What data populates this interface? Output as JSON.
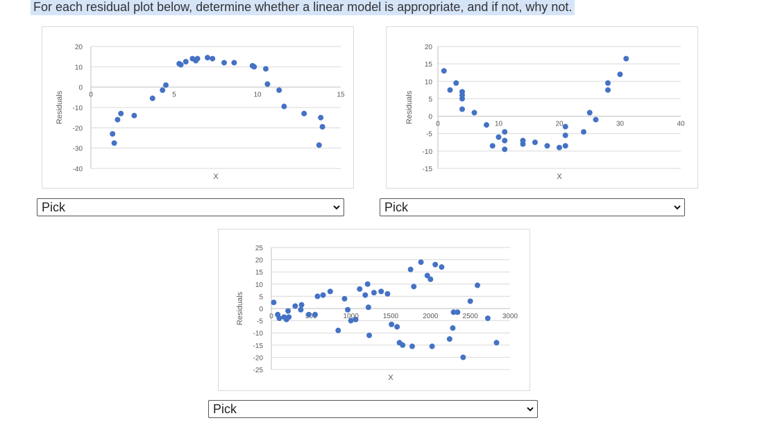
{
  "prompt": "For each residual plot below, determine whether a linear model is appropriate, and if not, why not.",
  "dropdowns": [
    {
      "selected": "Pick"
    },
    {
      "selected": "Pick"
    },
    {
      "selected": "Pick"
    }
  ],
  "colors": {
    "marker": "#4472c4",
    "grid": "#d9d9d9",
    "axis": "#bfbfbf",
    "highlight": "#d6e4f8"
  },
  "icons": {
    "dropdown": "chevron-down-icon"
  },
  "chart_data": [
    {
      "type": "scatter",
      "title": "",
      "xlabel": "X",
      "ylabel": "Residuals",
      "xlim": [
        0,
        15
      ],
      "ylim": [
        -40,
        20
      ],
      "xticks": [
        0,
        5,
        10,
        15
      ],
      "yticks": [
        -40,
        -30,
        -20,
        -10,
        0,
        10,
        20
      ],
      "grid": true,
      "legend": "none",
      "points": [
        [
          1.3,
          -23
        ],
        [
          1.4,
          -27.5
        ],
        [
          1.6,
          -16
        ],
        [
          1.8,
          -13
        ],
        [
          2.6,
          -14
        ],
        [
          3.7,
          -5.5
        ],
        [
          4.3,
          -1.5
        ],
        [
          4.5,
          1
        ],
        [
          5.3,
          11.5
        ],
        [
          5.4,
          11
        ],
        [
          5.7,
          12.5
        ],
        [
          6.1,
          14
        ],
        [
          6.3,
          13
        ],
        [
          6.4,
          14
        ],
        [
          7.0,
          14.5
        ],
        [
          7.3,
          14
        ],
        [
          8.0,
          12
        ],
        [
          8.6,
          12
        ],
        [
          9.7,
          10.5
        ],
        [
          9.8,
          10
        ],
        [
          10.5,
          9
        ],
        [
          10.6,
          1.5
        ],
        [
          11.3,
          -1.5
        ],
        [
          11.6,
          -9.5
        ],
        [
          12.8,
          -13
        ],
        [
          13.8,
          -15
        ],
        [
          13.9,
          -19.5
        ],
        [
          13.7,
          -28.5
        ]
      ]
    },
    {
      "type": "scatter",
      "title": "",
      "xlabel": "X",
      "ylabel": "Residuals",
      "xlim": [
        0,
        40
      ],
      "ylim": [
        -15,
        20
      ],
      "xticks": [
        0,
        10,
        20,
        30,
        40
      ],
      "yticks": [
        -15,
        -10,
        -5,
        0,
        5,
        10,
        15,
        20
      ],
      "grid": true,
      "legend": "none",
      "points": [
        [
          1,
          13
        ],
        [
          2,
          7.5
        ],
        [
          3,
          9.5
        ],
        [
          4,
          7
        ],
        [
          4,
          6
        ],
        [
          4,
          5
        ],
        [
          4,
          2
        ],
        [
          6,
          1
        ],
        [
          8,
          -2.5
        ],
        [
          9,
          -8.5
        ],
        [
          10,
          -6
        ],
        [
          11,
          -4.5
        ],
        [
          11,
          -7
        ],
        [
          11,
          -9.5
        ],
        [
          14,
          -7
        ],
        [
          14,
          -8
        ],
        [
          16,
          -7.5
        ],
        [
          18,
          -8.5
        ],
        [
          20,
          -9
        ],
        [
          21,
          -3
        ],
        [
          21,
          -5.5
        ],
        [
          21,
          -8.5
        ],
        [
          24,
          -4.5
        ],
        [
          25,
          1
        ],
        [
          26,
          -1
        ],
        [
          28,
          9.5
        ],
        [
          28,
          7.5
        ],
        [
          30,
          12
        ],
        [
          31,
          16.5
        ]
      ]
    },
    {
      "type": "scatter",
      "title": "",
      "xlabel": "X",
      "ylabel": "Residuals",
      "xlim": [
        0,
        3000
      ],
      "ylim": [
        -25,
        25
      ],
      "xticks": [
        0,
        500,
        1000,
        1500,
        2000,
        2500,
        3000
      ],
      "yticks": [
        -25,
        -20,
        -15,
        -10,
        -5,
        0,
        5,
        10,
        15,
        20,
        25
      ],
      "grid": true,
      "legend": "none",
      "points": [
        [
          30,
          2.5
        ],
        [
          80,
          -2.5
        ],
        [
          100,
          -4
        ],
        [
          160,
          -3.5
        ],
        [
          190,
          -4.5
        ],
        [
          220,
          -3.5
        ],
        [
          210,
          -1
        ],
        [
          300,
          1
        ],
        [
          380,
          1.5
        ],
        [
          370,
          -0.5
        ],
        [
          470,
          -2.5
        ],
        [
          550,
          -2.5
        ],
        [
          580,
          5
        ],
        [
          650,
          5.5
        ],
        [
          740,
          7
        ],
        [
          840,
          -9
        ],
        [
          920,
          4
        ],
        [
          960,
          -0.5
        ],
        [
          1000,
          -5
        ],
        [
          1060,
          -4.5
        ],
        [
          1110,
          8
        ],
        [
          1180,
          5.5
        ],
        [
          1210,
          10
        ],
        [
          1220,
          0.5
        ],
        [
          1230,
          -11
        ],
        [
          1290,
          6.5
        ],
        [
          1380,
          7
        ],
        [
          1460,
          6
        ],
        [
          1510,
          -6.5
        ],
        [
          1580,
          -7.5
        ],
        [
          1610,
          -14
        ],
        [
          1650,
          -15
        ],
        [
          1750,
          16
        ],
        [
          1790,
          9
        ],
        [
          1770,
          -15.5
        ],
        [
          1880,
          19
        ],
        [
          1960,
          13.5
        ],
        [
          2000,
          12
        ],
        [
          2020,
          -15.5
        ],
        [
          2060,
          18
        ],
        [
          2140,
          17
        ],
        [
          2240,
          -12.5
        ],
        [
          2280,
          -8
        ],
        [
          2290,
          -1.5
        ],
        [
          2340,
          -1.5
        ],
        [
          2410,
          -20
        ],
        [
          2500,
          3
        ],
        [
          2590,
          9.5
        ],
        [
          2720,
          -4
        ],
        [
          2830,
          -14
        ]
      ]
    }
  ]
}
